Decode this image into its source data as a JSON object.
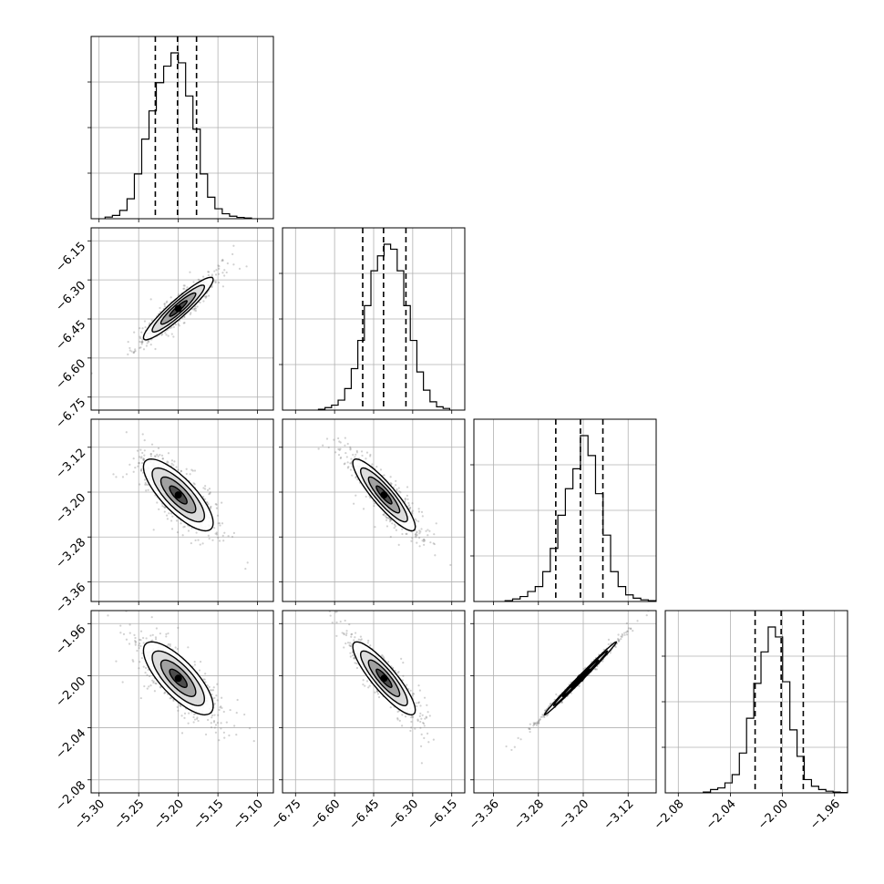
{
  "chart_data": {
    "type": "corner",
    "parameters": [
      {
        "range": [
          -5.31,
          -5.08
        ],
        "ticks": [
          -5.3,
          -5.25,
          -5.2,
          -5.15,
          -5.1
        ],
        "tick_labels": [
          "−5.30",
          "−5.25",
          "−5.20",
          "−5.15",
          "−5.10"
        ],
        "quantiles": [
          -5.229,
          -5.201,
          -5.177
        ],
        "mean": -5.2,
        "sd": 0.022
      },
      {
        "range": [
          -6.8,
          -6.1
        ],
        "ticks": [
          -6.75,
          -6.6,
          -6.45,
          -6.3,
          -6.15
        ],
        "tick_labels": [
          "−6.75",
          "−6.60",
          "−6.45",
          "−6.30",
          "−6.15"
        ],
        "quantiles": [
          -6.492,
          -6.412,
          -6.326
        ],
        "mean": -6.41,
        "sd": 0.06
      },
      {
        "range": [
          -3.395,
          -3.07
        ],
        "ticks": [
          -3.36,
          -3.28,
          -3.2,
          -3.12
        ],
        "tick_labels": [
          "−3.36",
          "−3.28",
          "−3.20",
          "−3.12"
        ],
        "quantiles": [
          -3.249,
          -3.205,
          -3.165
        ],
        "mean": -3.205,
        "sd": 0.032
      },
      {
        "range": [
          -2.09,
          -1.95
        ],
        "ticks": [
          -2.08,
          -2.04,
          -2.0,
          -1.96
        ],
        "tick_labels": [
          "−2.08",
          "−2.04",
          "−2.00",
          "−1.96"
        ],
        "quantiles": [
          -2.021,
          -2.001,
          -1.984
        ],
        "mean": -2.002,
        "sd": 0.014
      }
    ],
    "histograms": [
      [
        0.01,
        0.02,
        0.05,
        0.12,
        0.27,
        0.48,
        0.65,
        0.82,
        0.92,
        1.0,
        0.94,
        0.74,
        0.54,
        0.27,
        0.13,
        0.06,
        0.03,
        0.015,
        0.008,
        0.004
      ],
      [
        0.005,
        0.015,
        0.03,
        0.06,
        0.13,
        0.25,
        0.42,
        0.63,
        0.84,
        0.93,
        1.0,
        0.97,
        0.84,
        0.63,
        0.42,
        0.23,
        0.12,
        0.05,
        0.02,
        0.01
      ],
      [
        0.005,
        0.015,
        0.03,
        0.06,
        0.09,
        0.18,
        0.32,
        0.52,
        0.68,
        0.8,
        1.0,
        0.88,
        0.65,
        0.4,
        0.18,
        0.09,
        0.04,
        0.02,
        0.01,
        0.005
      ],
      [
        0.005,
        0.02,
        0.03,
        0.06,
        0.11,
        0.24,
        0.45,
        0.66,
        0.85,
        1.0,
        0.94,
        0.67,
        0.38,
        0.22,
        0.08,
        0.04,
        0.02,
        0.01,
        0.005,
        0.002
      ]
    ],
    "correlations": {
      "1,0": 0.93,
      "2,0": -0.78,
      "2,1": -0.89,
      "3,0": -0.76,
      "3,1": -0.87,
      "3,2": 0.995
    },
    "grid": true,
    "quantile_lines": "dashed"
  }
}
